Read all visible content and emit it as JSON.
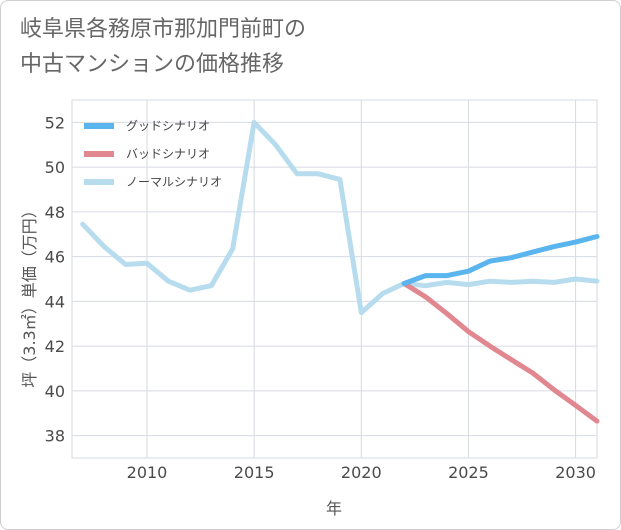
{
  "title": "岐阜県各務原市那加門前町の\n中古マンションの価格推移",
  "chart_data": {
    "type": "line",
    "xlabel": "年",
    "ylabel": "坪（3.3㎡）単価（万円）",
    "xlim": [
      2006.5,
      2031
    ],
    "ylim": [
      37,
      53
    ],
    "x_ticks": [
      2010,
      2015,
      2020,
      2025,
      2030
    ],
    "y_ticks": [
      38,
      40,
      42,
      44,
      46,
      48,
      50,
      52
    ],
    "grid": true,
    "legend_position": "top-left",
    "series": [
      {
        "name": "グッドシナリオ",
        "color": "#5ab4ee",
        "x": [
          2022,
          2023,
          2024,
          2025,
          2026,
          2027,
          2028,
          2029,
          2030,
          2031
        ],
        "values": [
          44.8,
          45.15,
          45.15,
          45.35,
          45.8,
          45.95,
          46.2,
          46.45,
          46.65,
          46.9
        ]
      },
      {
        "name": "バッドシナリオ",
        "color": "#e0878f",
        "x": [
          2022,
          2023,
          2024,
          2025,
          2026,
          2027,
          2028,
          2029,
          2030,
          2031
        ],
        "values": [
          44.8,
          44.2,
          43.45,
          42.65,
          42.0,
          41.4,
          40.8,
          40.05,
          39.35,
          38.65
        ]
      },
      {
        "name": "ノーマルシナリオ",
        "color": "#b6dcee",
        "x": [
          2007,
          2008,
          2009,
          2010,
          2011,
          2012,
          2013,
          2014,
          2015,
          2016,
          2017,
          2018,
          2019,
          2020,
          2021,
          2022,
          2023,
          2024,
          2025,
          2026,
          2027,
          2028,
          2029,
          2030,
          2031
        ],
        "values": [
          47.45,
          46.45,
          45.65,
          45.7,
          44.9,
          44.5,
          44.7,
          46.35,
          52.0,
          51.0,
          49.7,
          49.7,
          49.45,
          43.5,
          44.35,
          44.8,
          44.7,
          44.85,
          44.75,
          44.9,
          44.85,
          44.9,
          44.85,
          45.0,
          44.9
        ]
      }
    ]
  }
}
